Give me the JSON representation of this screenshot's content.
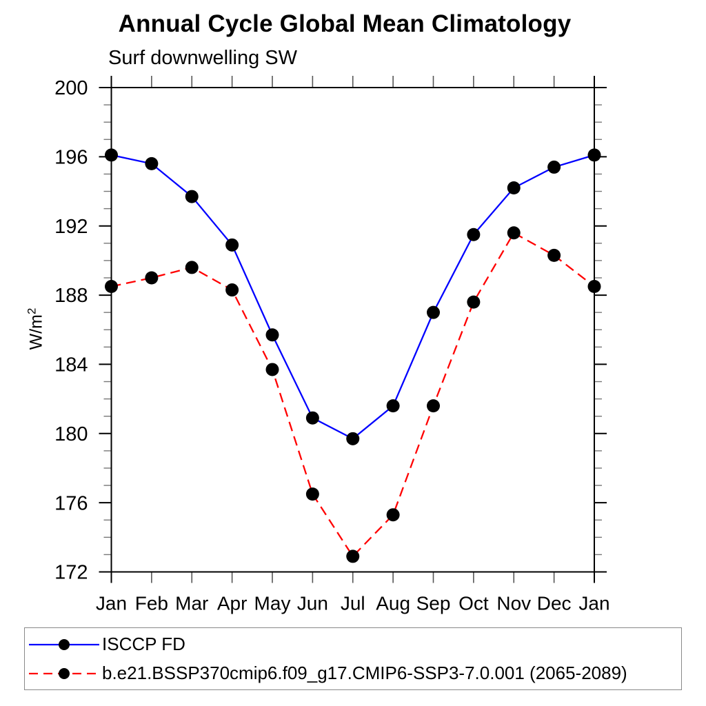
{
  "title": "Annual Cycle Global Mean Climatology",
  "subtitle": "Surf downwelling SW",
  "chart_data": {
    "type": "line",
    "title": "Annual Cycle Global Mean Climatology",
    "subtitle": "Surf downwelling SW",
    "xlabel": "",
    "ylabel": "W/m²",
    "ylabel_base": "W/m",
    "ylabel_exp": "2",
    "x": [
      "Jan",
      "Feb",
      "Mar",
      "Apr",
      "May",
      "Jun",
      "Jul",
      "Aug",
      "Sep",
      "Oct",
      "Nov",
      "Dec",
      "Jan"
    ],
    "ylim": [
      172,
      200
    ],
    "ytick_major_step": 4,
    "ytick_minor_step": 1,
    "ytick_labels": [
      172,
      176,
      180,
      184,
      188,
      192,
      196,
      200
    ],
    "grid": false,
    "legend_position": "bottom-box",
    "colors": {
      "axis": "#000000",
      "series1": "#0000ff",
      "series2": "#ff0000",
      "marker": "#000000"
    },
    "series": [
      {
        "name": "ISCCP FD",
        "color": "#0000ff",
        "line_style": "solid",
        "marker_color": "#000000",
        "values": [
          196.1,
          195.6,
          193.7,
          190.9,
          185.7,
          180.9,
          179.7,
          181.6,
          187.0,
          191.5,
          194.2,
          195.4,
          196.1
        ]
      },
      {
        "name": "b.e21.BSSP370cmip6.f09_g17.CMIP6-SSP3-7.0.001 (2065-2089)",
        "color": "#ff0000",
        "line_style": "dashed",
        "marker_color": "#000000",
        "values": [
          188.5,
          189.0,
          189.6,
          188.3,
          183.7,
          176.5,
          172.9,
          175.3,
          181.6,
          187.6,
          191.6,
          190.3,
          188.5
        ]
      }
    ]
  }
}
